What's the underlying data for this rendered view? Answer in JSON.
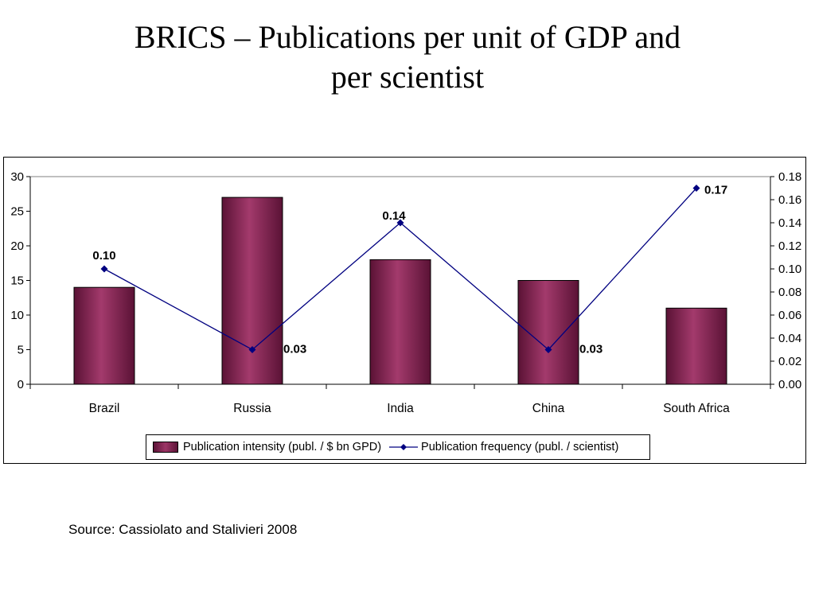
{
  "slide": {
    "title_line1": "BRICS – Publications per unit of GDP and",
    "title_line2": "per scientist",
    "source": "Source: Cassiolato and Stalivieri 2008"
  },
  "chart_data": {
    "type": "bar",
    "categories": [
      "Brazil",
      "Russia",
      "India",
      "China",
      "South Africa"
    ],
    "series": [
      {
        "name": "Publication intensity (publ. / $ bn GPD)",
        "type": "bar",
        "axis": "left",
        "values": [
          14,
          27,
          18,
          15,
          11
        ],
        "color": "#8b2c5a"
      },
      {
        "name": "Publication frequency (publ. / scientist)",
        "type": "line",
        "axis": "right",
        "values": [
          0.1,
          0.03,
          0.14,
          0.03,
          0.17
        ],
        "data_labels": [
          "0.10",
          "0.03",
          "0.14",
          "0.03",
          "0.17"
        ],
        "color": "#000080"
      }
    ],
    "y_left": {
      "ylim": [
        0,
        30
      ],
      "ticks": [
        "0",
        "5",
        "10",
        "15",
        "20",
        "25",
        "30"
      ]
    },
    "y_right": {
      "ylim": [
        0,
        0.18
      ],
      "ticks": [
        "0.00",
        "0.02",
        "0.04",
        "0.06",
        "0.08",
        "0.10",
        "0.12",
        "0.14",
        "0.16",
        "0.18"
      ]
    },
    "grid": false,
    "legend": "bottom"
  }
}
